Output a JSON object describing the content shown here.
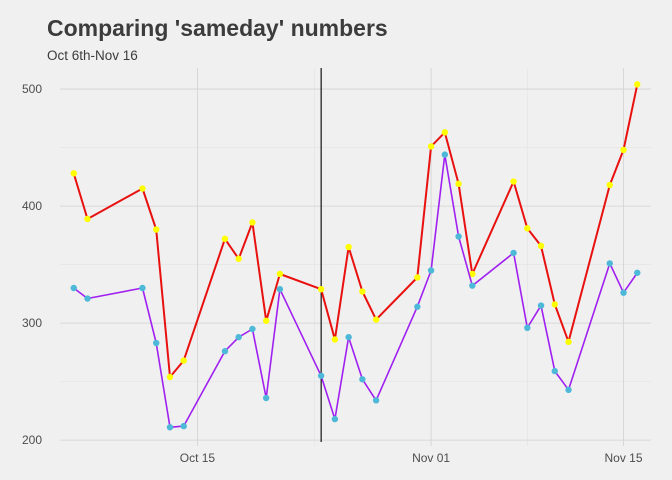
{
  "chart_data": {
    "type": "line",
    "title": "Comparing 'sameday' numbers",
    "subtitle": "Oct 6th-Nov 16",
    "xlabel": "",
    "ylabel": "",
    "x_tick_labels": [
      "Oct 15",
      "Nov 01",
      "Nov 15"
    ],
    "x_tick_dates": [
      "2015-10-15",
      "2015-11-01",
      "2015-11-15"
    ],
    "y_tick_labels": [
      "200",
      "300",
      "400",
      "500"
    ],
    "ylim": [
      195,
      518
    ],
    "xlim": [
      "2015-10-05",
      "2015-11-17"
    ],
    "grid": true,
    "legend": "none",
    "vline": {
      "x": "2015-10-24",
      "color": "#000000"
    },
    "series": [
      {
        "line_color": "#e8110f",
        "point_color": "#ffff00",
        "points": [
          [
            "2015-10-06",
            428
          ],
          [
            "2015-10-07",
            389
          ],
          [
            "2015-10-11",
            415
          ],
          [
            "2015-10-12",
            380
          ],
          [
            "2015-10-13",
            254
          ],
          [
            "2015-10-14",
            268
          ],
          [
            "2015-10-17",
            372
          ],
          [
            "2015-10-18",
            355
          ],
          [
            "2015-10-19",
            386
          ],
          [
            "2015-10-20",
            302
          ],
          [
            "2015-10-21",
            342
          ],
          [
            "2015-10-24",
            329
          ],
          [
            "2015-10-25",
            286
          ],
          [
            "2015-10-26",
            365
          ],
          [
            "2015-10-27",
            327
          ],
          [
            "2015-10-28",
            303
          ],
          [
            "2015-10-31",
            339
          ],
          [
            "2015-11-01",
            451
          ],
          [
            "2015-11-02",
            463
          ],
          [
            "2015-11-03",
            419
          ],
          [
            "2015-11-04",
            342
          ],
          [
            "2015-11-07",
            421
          ],
          [
            "2015-11-08",
            381
          ],
          [
            "2015-11-09",
            366
          ],
          [
            "2015-11-10",
            316
          ],
          [
            "2015-11-11",
            284
          ],
          [
            "2015-11-14",
            418
          ],
          [
            "2015-11-15",
            448
          ],
          [
            "2015-11-16",
            504
          ]
        ]
      },
      {
        "line_color": "#a020f0",
        "point_color": "#4db8d8",
        "points": [
          [
            "2015-10-06",
            330
          ],
          [
            "2015-10-07",
            321
          ],
          [
            "2015-10-11",
            330
          ],
          [
            "2015-10-12",
            283
          ],
          [
            "2015-10-13",
            211
          ],
          [
            "2015-10-14",
            212
          ],
          [
            "2015-10-17",
            276
          ],
          [
            "2015-10-18",
            288
          ],
          [
            "2015-10-19",
            295
          ],
          [
            "2015-10-20",
            236
          ],
          [
            "2015-10-21",
            329
          ],
          [
            "2015-10-24",
            255
          ],
          [
            "2015-10-25",
            218
          ],
          [
            "2015-10-26",
            288
          ],
          [
            "2015-10-27",
            252
          ],
          [
            "2015-10-28",
            234
          ],
          [
            "2015-10-31",
            314
          ],
          [
            "2015-11-01",
            345
          ],
          [
            "2015-11-02",
            444
          ],
          [
            "2015-11-03",
            374
          ],
          [
            "2015-11-04",
            332
          ],
          [
            "2015-11-07",
            360
          ],
          [
            "2015-11-08",
            296
          ],
          [
            "2015-11-09",
            315
          ],
          [
            "2015-11-10",
            259
          ],
          [
            "2015-11-11",
            243
          ],
          [
            "2015-11-14",
            351
          ],
          [
            "2015-11-15",
            326
          ],
          [
            "2015-11-16",
            343
          ]
        ]
      }
    ]
  }
}
